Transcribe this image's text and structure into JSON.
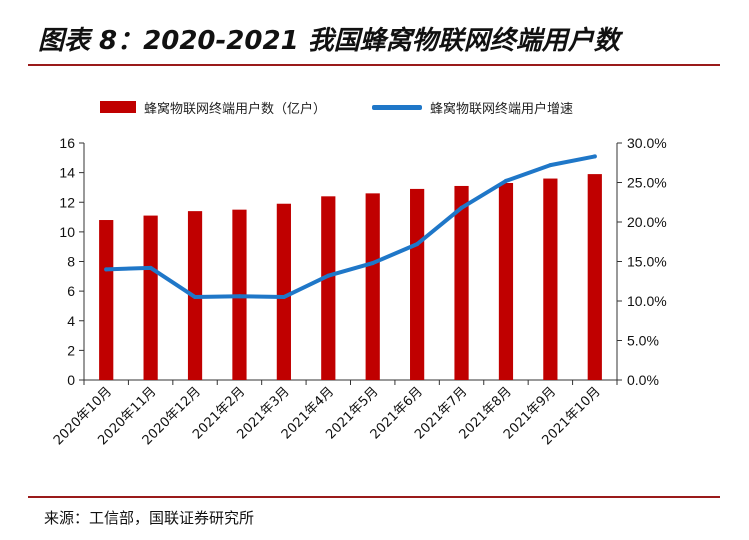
{
  "figure": {
    "title": "图表 8：2020-2021 我国蜂窝物联网终端用户数",
    "source": "来源：工信部，国联证券研究所"
  },
  "chart_data": {
    "type": "bar",
    "categories": [
      "2020年10月",
      "2020年11月",
      "2020年12月",
      "2021年2月",
      "2021年3月",
      "2021年4月",
      "2021年5月",
      "2021年6月",
      "2021年7月",
      "2021年8月",
      "2021年9月",
      "2021年10月"
    ],
    "series": [
      {
        "name": "蜂窝物联网终端用户数（亿户）",
        "type": "bar",
        "axis": "left",
        "color": "#c00000",
        "values": [
          10.8,
          11.1,
          11.4,
          11.5,
          11.9,
          12.4,
          12.6,
          12.9,
          13.1,
          13.3,
          13.6,
          13.9
        ]
      },
      {
        "name": "蜂窝物联网终端用户增速",
        "type": "line",
        "axis": "right",
        "color": "#1f77c8",
        "values": [
          14.0,
          14.2,
          10.5,
          10.6,
          10.5,
          13.2,
          14.8,
          17.2,
          21.8,
          25.2,
          27.2,
          28.3
        ]
      }
    ],
    "y_left": {
      "min": 0,
      "max": 16,
      "ticks": [
        "0",
        "2",
        "4",
        "6",
        "8",
        "10",
        "12",
        "14",
        "16"
      ]
    },
    "y_right": {
      "min": 0,
      "max": 30,
      "ticks": [
        "0.0%",
        "5.0%",
        "10.0%",
        "15.0%",
        "20.0%",
        "25.0%",
        "30.0%"
      ]
    },
    "legend_position": "top",
    "grid": false
  }
}
